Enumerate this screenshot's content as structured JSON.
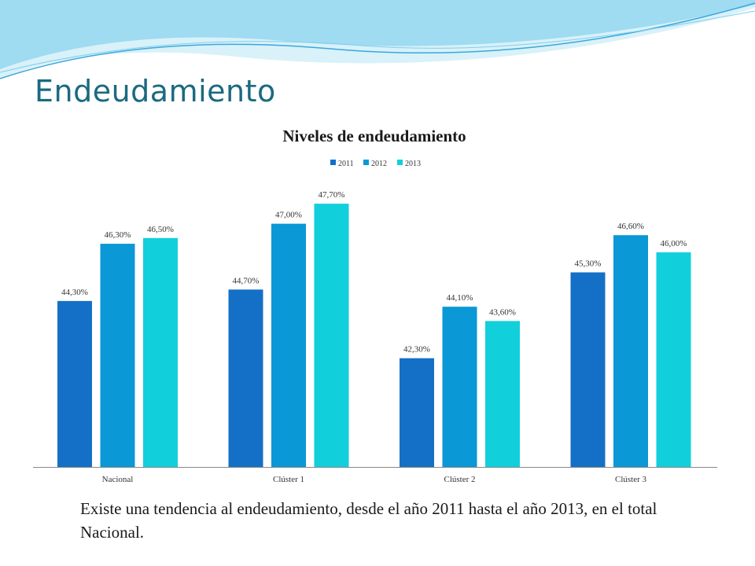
{
  "slide": {
    "title": "Endeudamiento",
    "caption": "Existe una tendencia al endeudamiento, desde el año 2011 hasta el año 2013,  en el total Nacional."
  },
  "colors": {
    "title": "#1b6a80",
    "series": [
      "#1470c6",
      "#0a98d6",
      "#12cfdc"
    ],
    "wave_light": "#bfe8f5",
    "wave_mid": "#7fd0ee",
    "wave_dark": "#3aa8dc"
  },
  "chart_data": {
    "type": "bar",
    "title": "Niveles de endeudamiento",
    "legend_position": "top",
    "grid": false,
    "categories": [
      "Nacional",
      "Clúster 1",
      "Clúster 2",
      "Clúster 3"
    ],
    "series": [
      {
        "name": "2011",
        "values": [
          44.3,
          44.7,
          42.3,
          45.3
        ],
        "labels": [
          "44,30%",
          "44,70%",
          "42,30%",
          "45,30%"
        ]
      },
      {
        "name": "2012",
        "values": [
          46.3,
          47.0,
          44.1,
          46.6
        ],
        "labels": [
          "46,30%",
          "47,00%",
          "44,10%",
          "46,60%"
        ]
      },
      {
        "name": "2013",
        "values": [
          46.5,
          47.7,
          43.6,
          46.0
        ],
        "labels": [
          "46,50%",
          "47,70%",
          "43,60%",
          "46,00%"
        ]
      }
    ],
    "ylim": [
      38.5,
      48.5
    ]
  }
}
